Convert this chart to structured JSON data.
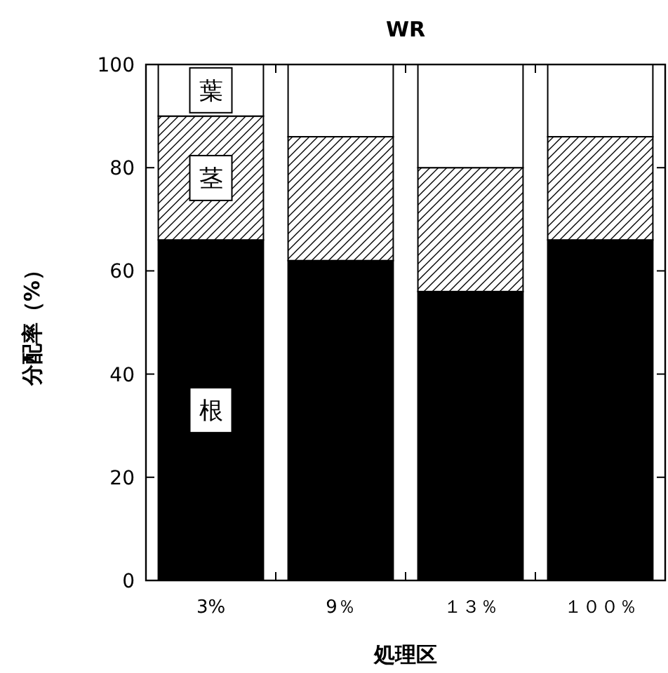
{
  "chart_data": {
    "type": "bar",
    "stacked": true,
    "title": "WR",
    "xlabel": "処理区",
    "ylabel": "分配率（%）",
    "categories": [
      "3%",
      "9％",
      "１３％",
      "１００％"
    ],
    "series": [
      {
        "name": "根",
        "color": "#000000",
        "values": [
          66,
          62,
          56,
          66
        ]
      },
      {
        "name": "茎",
        "color": "#000000",
        "values": [
          24,
          24,
          24,
          20
        ]
      },
      {
        "name": "葉",
        "color": "#ffffff",
        "values": [
          10,
          14,
          20,
          14
        ]
      }
    ],
    "ylim": [
      0,
      100
    ],
    "yticks": [
      0,
      20,
      40,
      60,
      80,
      100
    ],
    "grid": false
  }
}
